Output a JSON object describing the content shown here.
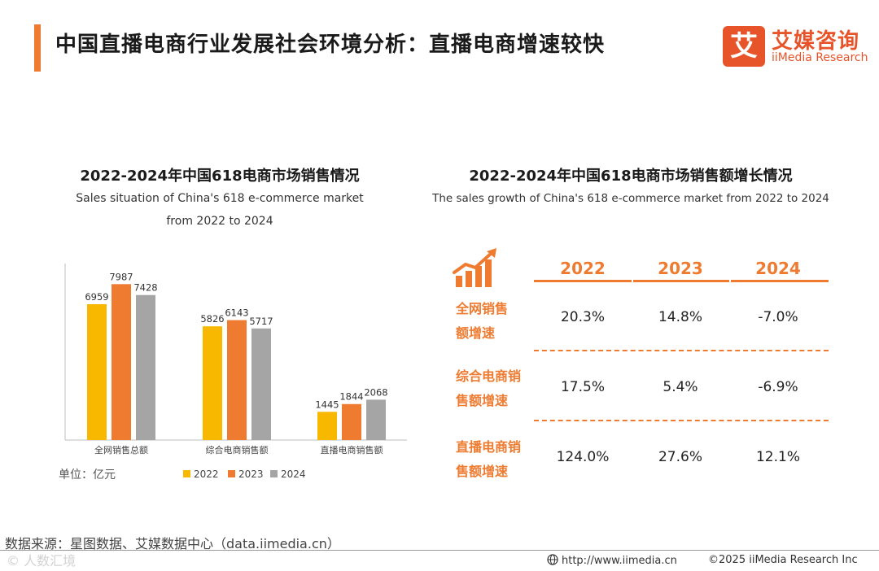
{
  "header": {
    "title": "中国直播电商行业发展社会环境分析：直播电商增速较快",
    "logo_mark": "艾",
    "logo_cn": "艾媒咨询",
    "logo_en": "iiMedia Research"
  },
  "left_chart": {
    "title": "2022-2024年中国618电商市场销售情况",
    "subtitle_line1": "Sales situation of China's 618 e-commerce market",
    "subtitle_line2": "from 2022 to 2024"
  },
  "right_table": {
    "title": "2022-2024年中国618电商市场销售额增长情况",
    "subtitle": "The sales growth of China's 618 e-commerce market from 2022 to 2024",
    "icon": "growth-chart-icon",
    "years": [
      "2022",
      "2023",
      "2024"
    ],
    "rows": [
      {
        "label_line1": "全网销售",
        "label_line2": "额增速",
        "values": [
          "20.3%",
          "14.8%",
          "-7.0%"
        ]
      },
      {
        "label_line1": "综合电商销",
        "label_line2": "售额增速",
        "values": [
          "17.5%",
          "5.4%",
          "-6.9%"
        ]
      },
      {
        "label_line1": "直播电商销",
        "label_line2": "售额增速",
        "values": [
          "124.0%",
          "27.6%",
          "12.1%"
        ]
      }
    ]
  },
  "chart_data": {
    "type": "bar",
    "title": "2022-2024年中国618电商市场销售情况",
    "categories": [
      "全网销售总额",
      "综合电商销售额",
      "直播电商销售额"
    ],
    "series": [
      {
        "name": "2022",
        "color": "#f9b800",
        "values": [
          6959,
          5826,
          1445
        ]
      },
      {
        "name": "2023",
        "color": "#ee7b30",
        "values": [
          7987,
          6143,
          1844
        ]
      },
      {
        "name": "2024",
        "color": "#a5a5a5",
        "values": [
          7428,
          5717,
          2068
        ]
      }
    ],
    "unit_label": "单位：亿元",
    "ylim": [
      0,
      9000
    ],
    "legend": "bottom-right",
    "grid": false
  },
  "footer": {
    "source": "数据来源：星图数据、艾媒数据中心（data.iimedia.cn）",
    "watermark": "© 人数汇境",
    "url": "http://www.iimedia.cn",
    "copyright": "©2025  iiMedia Research  Inc"
  },
  "colors": {
    "accent": "#ee7b30",
    "brand": "#e8542a"
  }
}
